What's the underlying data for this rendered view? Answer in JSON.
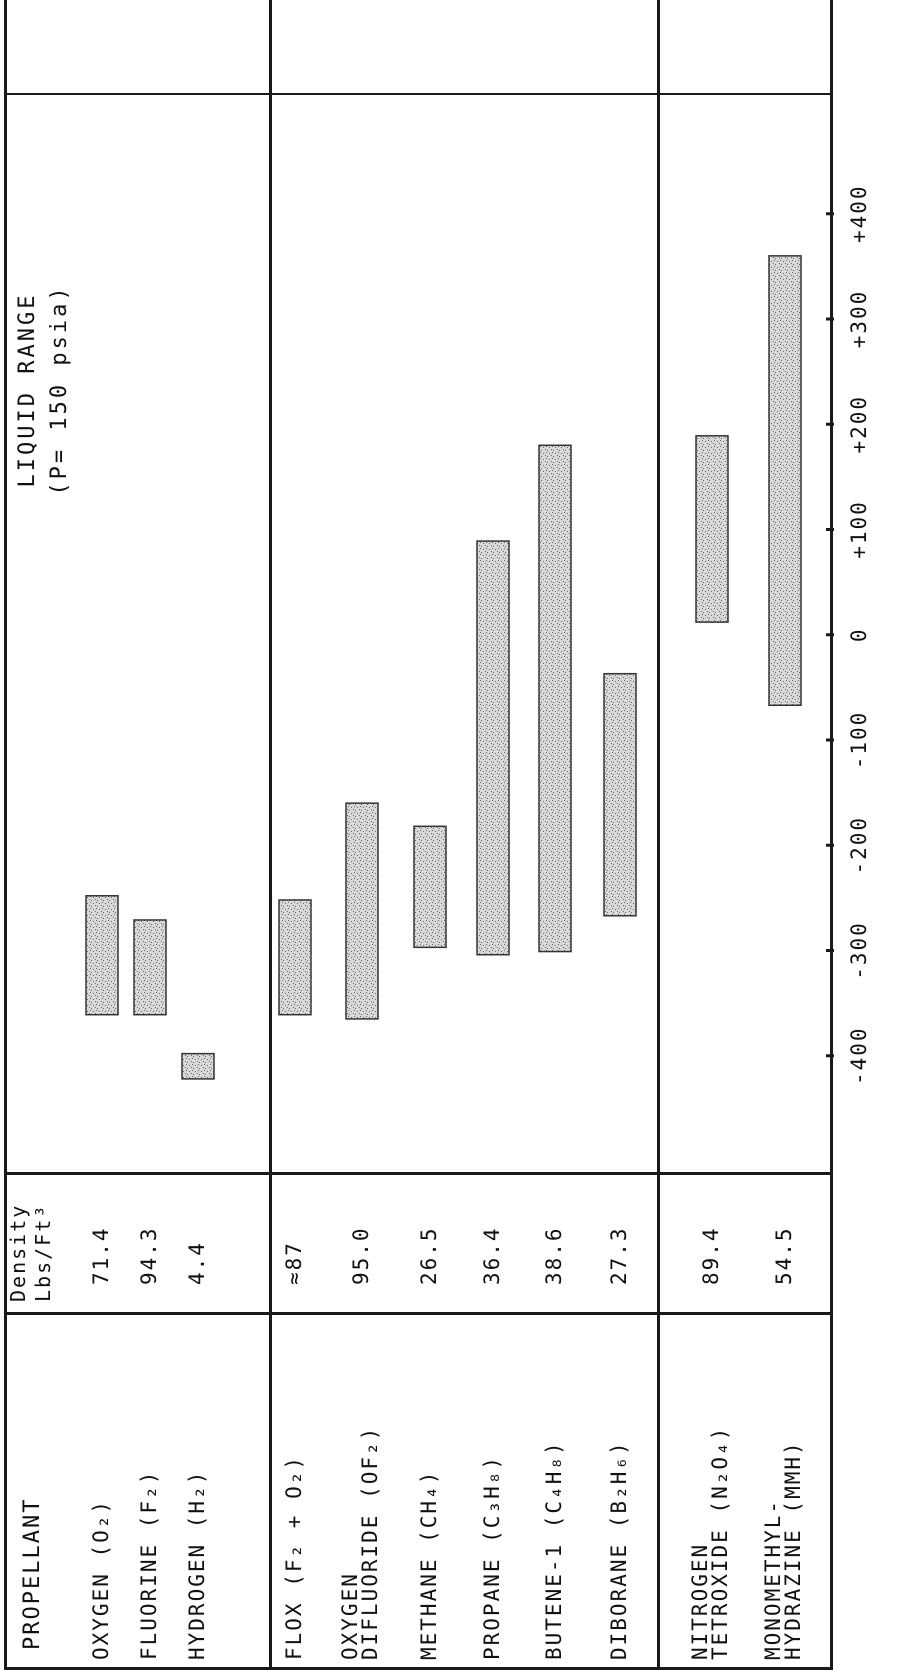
{
  "table": {
    "propellant_header": "PROPELLANT",
    "density_header_line1": "Density",
    "density_header_line2": "Lbs/Ft³"
  },
  "chart_title": {
    "line1": "LIQUID RANGE",
    "line2": "(P= 150 psia)"
  },
  "rows": [
    {
      "name": "OXYGEN (O₂)",
      "density": "71.4"
    },
    {
      "name": "FLUORINE (F₂)",
      "density": "94.3"
    },
    {
      "name": "HYDROGEN (H₂)",
      "density": "4.4"
    },
    {
      "name": "FLOX (F₂ + O₂)",
      "density": "≈87"
    },
    {
      "name": "OXYGEN\nDIFLUORIDE (OF₂)",
      "density": "95.0"
    },
    {
      "name": "METHANE (CH₄)",
      "density": "26.5"
    },
    {
      "name": "PROPANE (C₃H₈)",
      "density": "36.4"
    },
    {
      "name": "BUTENE-1 (C₄H₈)",
      "density": "38.6"
    },
    {
      "name": "DIBORANE (B₂H₆)",
      "density": "27.3"
    },
    {
      "name": "NITROGEN\nTETROXIDE (N₂O₄)",
      "density": "89.4"
    },
    {
      "name": "MONOMETHYL-\nHYDRAZINE (MMH)",
      "density": "54.5"
    }
  ],
  "chart_data": {
    "type": "bar",
    "orientation": "horizontal-floating-range",
    "title": "LIQUID RANGE (P= 150 psia)",
    "xlim": [
      -400,
      400
    ],
    "ticks": [
      "-400",
      "-300",
      "-200",
      "-100",
      "0",
      "+100",
      "+200",
      "+300",
      "+400"
    ],
    "tick_values": [
      -400,
      -300,
      -200,
      -100,
      0,
      100,
      200,
      300,
      400
    ],
    "categories": [
      "OXYGEN (O₂)",
      "FLUORINE (F₂)",
      "HYDROGEN (H₂)",
      "FLOX (F₂ + O₂)",
      "OXYGEN DIFLUORIDE (OF₂)",
      "METHANE (CH₄)",
      "PROPANE (C₃H₈)",
      "BUTENE-1 (C₄H₈)",
      "DIBORANE (B₂H₆)",
      "NITROGEN TETROXIDE (N₂O₄)",
      "MONOMETHYL-HYDRAZINE (MMH)"
    ],
    "ranges": [
      [
        -361,
        -248
      ],
      [
        -361,
        -271
      ],
      [
        -422,
        -398
      ],
      [
        -361,
        -252
      ],
      [
        -365,
        -160
      ],
      [
        -297,
        -182
      ],
      [
        -304,
        89
      ],
      [
        -301,
        180
      ],
      [
        -267,
        -37
      ],
      [
        12,
        189
      ],
      [
        -67,
        360
      ]
    ],
    "colors": {
      "bar_fill": "#d8d8d8",
      "bar_stroke": "#333333",
      "line": "#1a1a1a"
    }
  }
}
